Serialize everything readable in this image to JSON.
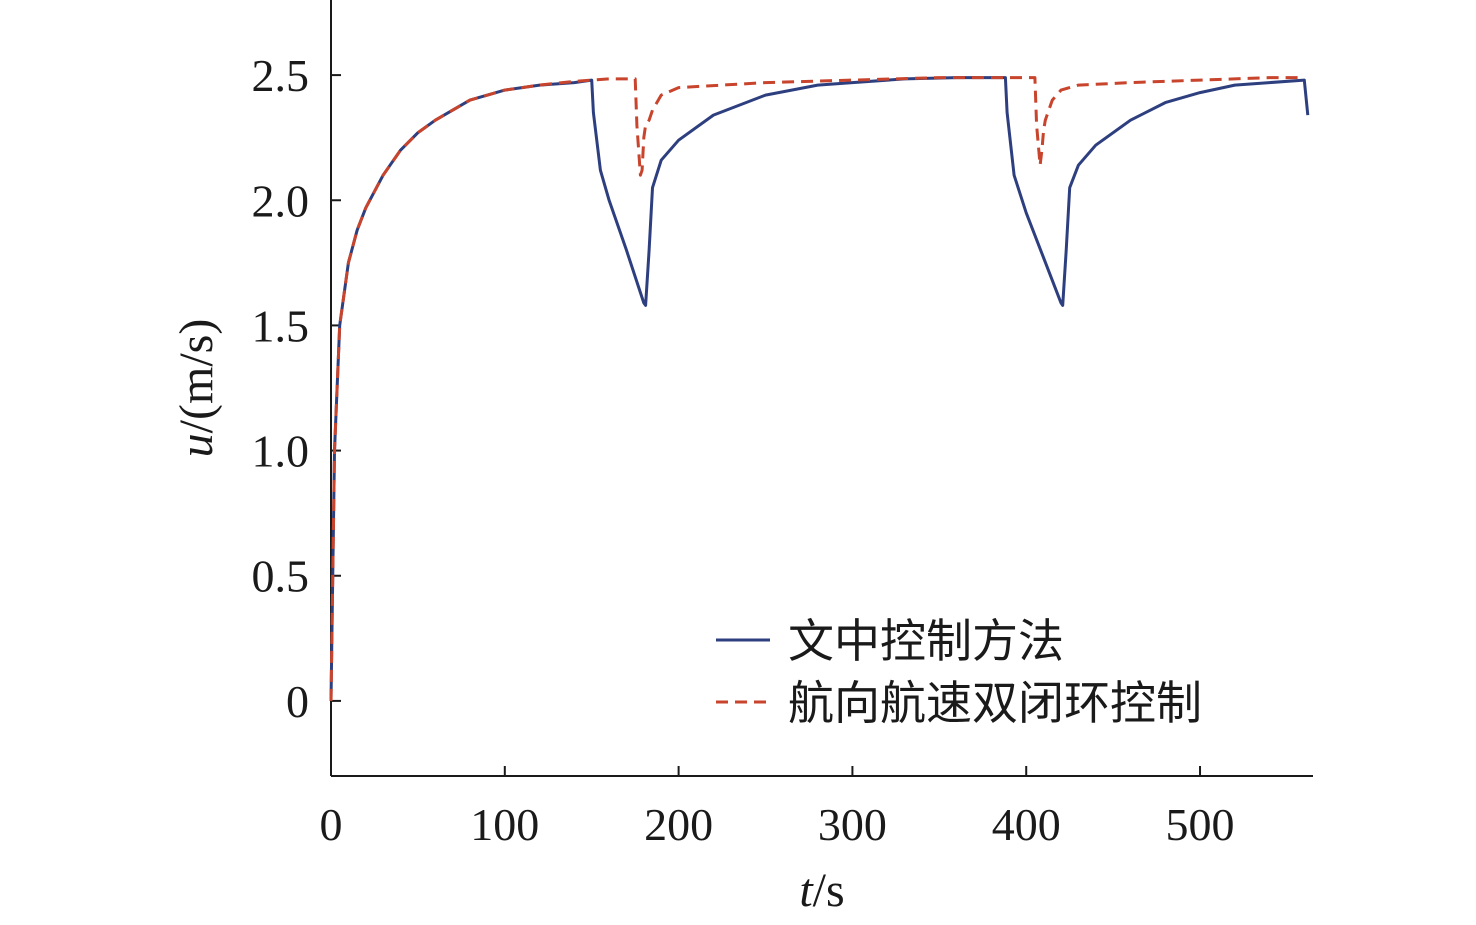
{
  "chart_data": {
    "type": "line",
    "xlabel_italic": "t",
    "xlabel_unit": "/s",
    "ylabel_italic": "u",
    "ylabel_unit": "/(m/s)",
    "xlim": [
      0,
      565
    ],
    "ylim": [
      -0.3,
      2.8
    ],
    "xticks": [
      0,
      100,
      200,
      300,
      400,
      500
    ],
    "xtick_labels": [
      "0",
      "100",
      "200",
      "300",
      "400",
      "500"
    ],
    "yticks": [
      0,
      0.5,
      1.0,
      1.5,
      2.0,
      2.5
    ],
    "ytick_labels": [
      "0",
      "0.5",
      "1.0",
      "1.5",
      "2.0",
      "2.5"
    ],
    "grid": false,
    "legend_position": "bottom-right",
    "series": [
      {
        "name": "文中控制方法",
        "color": "#2e3f7f",
        "style": "solid",
        "x": [
          0,
          2,
          5,
          10,
          15,
          20,
          30,
          40,
          50,
          60,
          80,
          100,
          120,
          140,
          150,
          151,
          155,
          160,
          170,
          180,
          181,
          183,
          185,
          190,
          200,
          220,
          250,
          280,
          300,
          330,
          360,
          388,
          389,
          393,
          400,
          410,
          420,
          421,
          423,
          425,
          430,
          440,
          460,
          480,
          500,
          520,
          540,
          560,
          562
        ],
        "y": [
          0,
          1.0,
          1.5,
          1.75,
          1.88,
          1.97,
          2.1,
          2.2,
          2.27,
          2.32,
          2.4,
          2.44,
          2.46,
          2.47,
          2.48,
          2.35,
          2.12,
          2.0,
          1.8,
          1.59,
          1.58,
          1.8,
          2.05,
          2.16,
          2.24,
          2.34,
          2.42,
          2.46,
          2.47,
          2.485,
          2.49,
          2.49,
          2.35,
          2.1,
          1.95,
          1.77,
          1.59,
          1.58,
          1.8,
          2.05,
          2.14,
          2.22,
          2.32,
          2.39,
          2.43,
          2.46,
          2.47,
          2.48,
          2.34
        ]
      },
      {
        "name": "航向航速双闭环控制",
        "color": "#c8442c",
        "style": "dashed",
        "x": [
          0,
          2,
          5,
          10,
          15,
          20,
          30,
          40,
          50,
          60,
          80,
          100,
          120,
          140,
          150,
          160,
          175,
          176,
          178,
          179,
          180,
          181,
          183,
          185,
          190,
          200,
          250,
          300,
          350,
          400,
          405,
          406,
          408,
          409,
          410,
          411,
          413,
          415,
          420,
          430,
          460,
          500,
          540,
          560
        ],
        "y": [
          0,
          1.0,
          1.5,
          1.75,
          1.88,
          1.97,
          2.1,
          2.2,
          2.27,
          2.32,
          2.4,
          2.44,
          2.46,
          2.475,
          2.48,
          2.485,
          2.485,
          2.3,
          2.1,
          2.12,
          2.25,
          2.3,
          2.32,
          2.36,
          2.42,
          2.45,
          2.47,
          2.48,
          2.49,
          2.49,
          2.49,
          2.3,
          2.14,
          2.2,
          2.28,
          2.32,
          2.36,
          2.4,
          2.44,
          2.46,
          2.47,
          2.48,
          2.49,
          2.49
        ]
      }
    ]
  }
}
